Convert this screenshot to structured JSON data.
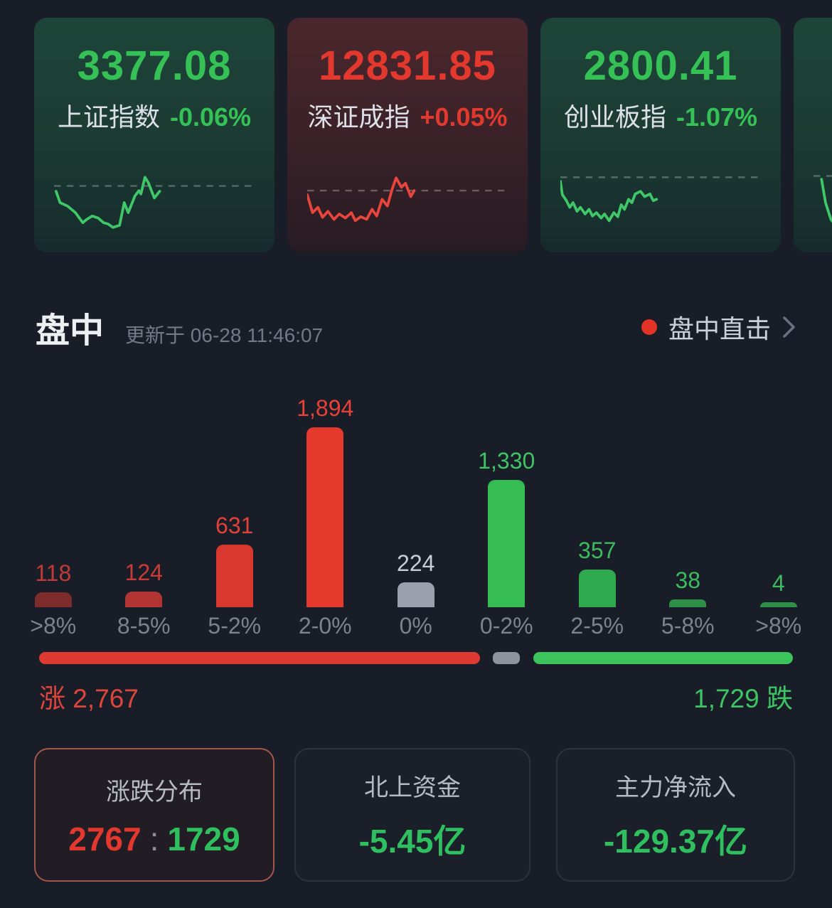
{
  "colors": {
    "up_red": "#e2382e",
    "down_green": "#35c156",
    "flat_gray": "#9aa1ac",
    "selected_border": "#a3564b",
    "live_dot": "#e23326",
    "page_bg": "#191d28"
  },
  "indices": [
    {
      "name": "上证指数",
      "value": "3377.08",
      "change": "-0.06%",
      "trend": "down",
      "spark_color": "#3fc768",
      "spark_ref_y": 35,
      "spark": [
        [
          3,
          43
        ],
        [
          9,
          60
        ],
        [
          20,
          65
        ],
        [
          32,
          75
        ],
        [
          43,
          90
        ],
        [
          49,
          85
        ],
        [
          57,
          80
        ],
        [
          66,
          83
        ],
        [
          74,
          90
        ],
        [
          81,
          92
        ],
        [
          88,
          97
        ],
        [
          98,
          94
        ],
        [
          105,
          60
        ],
        [
          111,
          75
        ],
        [
          121,
          50
        ],
        [
          127,
          42
        ],
        [
          130,
          47
        ],
        [
          136,
          22
        ],
        [
          141,
          30
        ],
        [
          150,
          53
        ],
        [
          158,
          43
        ]
      ]
    },
    {
      "name": "深证成指",
      "value": "12831.85",
      "change": "+0.05%",
      "trend": "up",
      "spark_color": "#e8453c",
      "spark_ref_y": 42,
      "spark": [
        [
          0,
          48
        ],
        [
          8,
          75
        ],
        [
          16,
          67
        ],
        [
          23,
          82
        ],
        [
          31,
          73
        ],
        [
          40,
          85
        ],
        [
          48,
          77
        ],
        [
          57,
          83
        ],
        [
          66,
          75
        ],
        [
          72,
          87
        ],
        [
          80,
          81
        ],
        [
          89,
          85
        ],
        [
          97,
          70
        ],
        [
          104,
          80
        ],
        [
          112,
          55
        ],
        [
          120,
          65
        ],
        [
          127,
          40
        ],
        [
          133,
          23
        ],
        [
          141,
          37
        ],
        [
          147,
          31
        ],
        [
          155,
          51
        ],
        [
          160,
          42
        ]
      ]
    },
    {
      "name": "创业板指",
      "value": "2800.41",
      "change": "-1.07%",
      "trend": "down",
      "spark_color": "#3fc768",
      "spark_ref_y": 22,
      "spark": [
        [
          0,
          28
        ],
        [
          3,
          48
        ],
        [
          9,
          57
        ],
        [
          14,
          67
        ],
        [
          19,
          60
        ],
        [
          25,
          73
        ],
        [
          30,
          67
        ],
        [
          37,
          77
        ],
        [
          43,
          70
        ],
        [
          48,
          80
        ],
        [
          54,
          75
        ],
        [
          61,
          83
        ],
        [
          66,
          77
        ],
        [
          73,
          87
        ],
        [
          80,
          75
        ],
        [
          86,
          81
        ],
        [
          91,
          63
        ],
        [
          96,
          70
        ],
        [
          102,
          55
        ],
        [
          107,
          60
        ],
        [
          112,
          47
        ],
        [
          120,
          43
        ],
        [
          126,
          51
        ],
        [
          134,
          47
        ],
        [
          139,
          57
        ],
        [
          144,
          55
        ]
      ]
    },
    {
      "name": "",
      "value": "",
      "change": "",
      "trend": "down",
      "spark_color": "#3fc768",
      "spark_ref_y": 20,
      "spark": [
        [
          12,
          25
        ],
        [
          18,
          60
        ],
        [
          26,
          85
        ],
        [
          36,
          98
        ],
        [
          48,
          99
        ],
        [
          58,
          88
        ]
      ]
    }
  ],
  "section": {
    "title": "盘中",
    "updated": "更新于 06-28 11:46:07",
    "live_label": "盘中直击"
  },
  "chart_data": {
    "type": "bar",
    "categories": [
      ">8%",
      "8-5%",
      "5-2%",
      "2-0%",
      "0%",
      "0-2%",
      "2-5%",
      "5-8%",
      ">8%"
    ],
    "values": [
      118,
      124,
      631,
      1894,
      224,
      1330,
      357,
      38,
      4
    ],
    "value_labels": [
      "118",
      "124",
      "631",
      "1,894",
      "224",
      "1,330",
      "357",
      "38",
      "4"
    ],
    "bar_colors": [
      "#7e2b2c",
      "#b23433",
      "#d8382e",
      "#e6392e",
      "#9aa1ac",
      "#35bd54",
      "#2fa94d",
      "#2e8f47",
      "#2e8f47"
    ],
    "label_colors": [
      "#c23a36",
      "#cb3b35",
      "#e04138",
      "#e84138",
      "#c9cdd5",
      "#3fc463",
      "#3cbb5d",
      "#3cbb5d",
      "#3cbb5d"
    ],
    "title": "",
    "xlabel": "",
    "ylabel": "",
    "ylim": [
      0,
      1894
    ],
    "grid": false,
    "legend": false
  },
  "ratio": {
    "up": 2767,
    "flat": 224,
    "down": 1729,
    "up_label": "涨 2,767",
    "down_label": "1,729 跌"
  },
  "summary_cards": [
    {
      "title": "涨跌分布",
      "value_up": "2767",
      "separator": ":",
      "value_down": "1729",
      "selected": true
    },
    {
      "title": "北上资金",
      "value": "-5.45亿"
    },
    {
      "title": "主力净流入",
      "value": "-129.37亿"
    }
  ]
}
